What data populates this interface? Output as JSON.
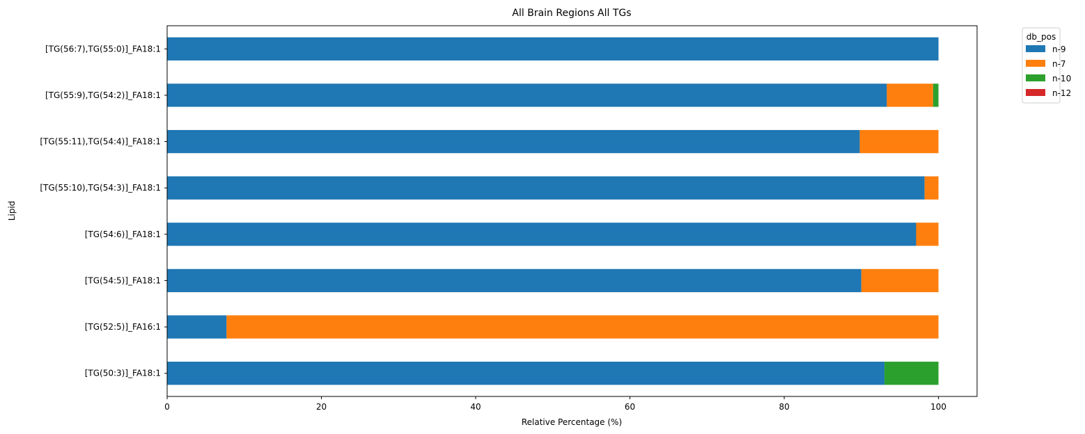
{
  "chart_data": {
    "type": "bar",
    "orientation": "horizontal",
    "stacked": true,
    "title": "All Brain Regions All TGs",
    "xlabel": "Relative Percentage (%)",
    "ylabel": "Lipid",
    "xlim": [
      0,
      105
    ],
    "xticks": [
      0,
      20,
      40,
      60,
      80,
      100
    ],
    "grid": false,
    "legend": {
      "title": "db_pos",
      "placement": "outside-top-right"
    },
    "categories": [
      "[TG(56:7),TG(55:0)]_FA18:1",
      "[TG(55:9),TG(54:2)]_FA18:1",
      "[TG(55:11),TG(54:4)]_FA18:1",
      "[TG(55:10),TG(54:3)]_FA18:1",
      "[TG(54:6)]_FA18:1",
      "[TG(54:5)]_FA18:1",
      "[TG(52:5)]_FA16:1",
      "[TG(50:3)]_FA18:1"
    ],
    "series": [
      {
        "name": "n-9",
        "color": "#1f77b4",
        "values": [
          100,
          93.3,
          89.8,
          98.2,
          97.1,
          90.0,
          7.7,
          93.0
        ]
      },
      {
        "name": "n-7",
        "color": "#ff7f0e",
        "values": [
          0,
          6.0,
          10.2,
          1.8,
          2.9,
          10.0,
          92.3,
          0
        ]
      },
      {
        "name": "n-10",
        "color": "#2ca02c",
        "values": [
          0,
          0.7,
          0,
          0,
          0,
          0,
          0,
          7.0
        ]
      },
      {
        "name": "n-12",
        "color": "#d62728",
        "values": [
          0,
          0,
          0,
          0,
          0,
          0,
          0,
          0
        ]
      }
    ]
  }
}
